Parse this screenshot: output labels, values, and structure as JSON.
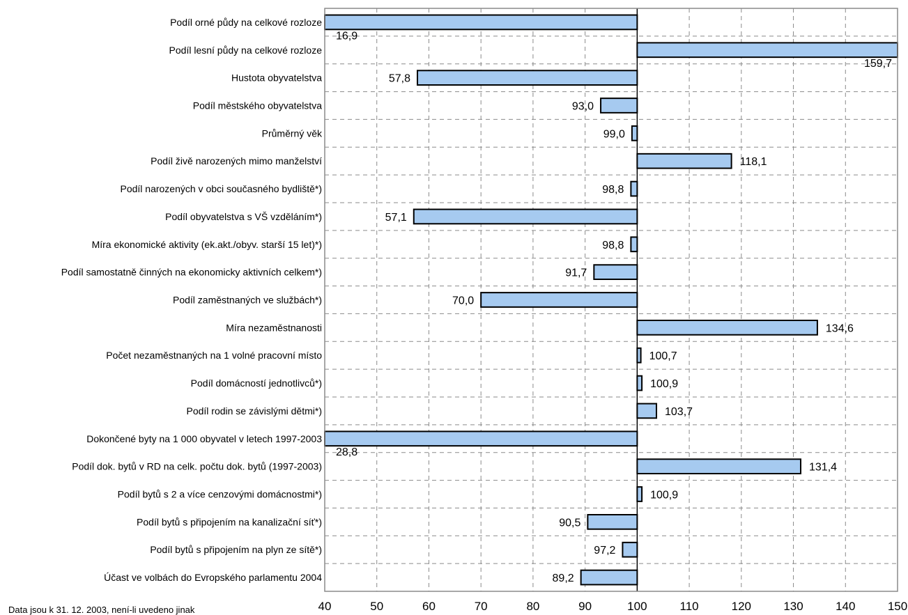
{
  "chart_data": {
    "type": "bar",
    "orientation": "horizontal",
    "baseline": 100,
    "xlim": [
      40,
      150
    ],
    "xticks": [
      40,
      50,
      60,
      70,
      80,
      90,
      100,
      110,
      120,
      130,
      140,
      150
    ],
    "grid": true,
    "bar_color": "#a6caf0",
    "categories": [
      "Podíl orné půdy na celkové rozloze",
      "Podíl lesní půdy na celkové rozloze",
      "Hustota obyvatelstva",
      "Podíl městského obyvatelstva",
      "Průměrný věk",
      "Podíl živě narozených mimo manželství",
      "Podíl narozených v obci současného bydliště*)",
      "Podíl obyvatelstva s VŠ vzděláním*)",
      "Míra ekonomické aktivity (ek.akt./obyv. starší 15 let)*)",
      "Podíl samostatně činných na ekonomicky aktivních celkem*)",
      "Podíl zaměstnaných ve službách*)",
      "Míra nezaměstnanosti",
      "Počet nezaměstnaných na 1 volné pracovní místo",
      "Podíl domácností jednotlivců*)",
      "Podíl rodin se závislými dětmi*)",
      "Dokončené byty na 1 000 obyvatel v letech 1997-2003",
      "Podíl dok. bytů v RD na celk. počtu dok. bytů (1997-2003)",
      "Podíl bytů s 2 a více cenzovými domácnostmi*)",
      "Podíl bytů s připojením na kanalizační síť*)",
      "Podíl bytů s připojením na plyn ze sítě*)",
      "Účast ve volbách do Evropského parlamentu 2004"
    ],
    "values": [
      16.9,
      159.7,
      57.8,
      93.0,
      99.0,
      118.1,
      98.8,
      57.1,
      98.8,
      91.7,
      70.0,
      134.6,
      100.7,
      100.9,
      103.7,
      28.8,
      131.4,
      100.9,
      90.5,
      97.2,
      89.2
    ],
    "value_labels": [
      "16,9",
      "159,7",
      "57,8",
      "93,0",
      "99,0",
      "118,1",
      "98,8",
      "57,1",
      "98,8",
      "91,7",
      "70,0",
      "134,6",
      "100,7",
      "100,9",
      "103,7",
      "28,8",
      "131,4",
      "100,9",
      "90,5",
      "97,2",
      "89,2"
    ],
    "footnote": "Data jsou k 31. 12. 2003, není-li uvedeno jinak"
  }
}
